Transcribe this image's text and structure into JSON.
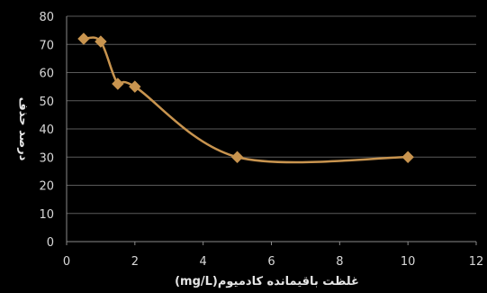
{
  "chart_data": {
    "type": "scatter",
    "title": "",
    "xlabel": "(mg/L)غلظت باقیمانده کادمیوم",
    "ylabel": "درصد حذف",
    "xlim": [
      0,
      12
    ],
    "ylim": [
      0,
      80
    ],
    "x_ticks": [
      0,
      2,
      4,
      6,
      8,
      10,
      12
    ],
    "y_ticks": [
      0,
      10,
      20,
      30,
      40,
      50,
      60,
      70,
      80
    ],
    "grid": "horizontal",
    "legend": "none",
    "smooth_line": true,
    "marker": "diamond",
    "series": [
      {
        "x": [
          0.5,
          1,
          1.5,
          2,
          5,
          10
        ],
        "y": [
          72,
          71,
          56,
          55,
          30,
          30
        ]
      }
    ]
  },
  "colors": {
    "background": "#000000",
    "series": "#c8944f",
    "grid": "#5a5a5a",
    "axis": "#8a8a8a",
    "text": "#d8d8d8"
  }
}
